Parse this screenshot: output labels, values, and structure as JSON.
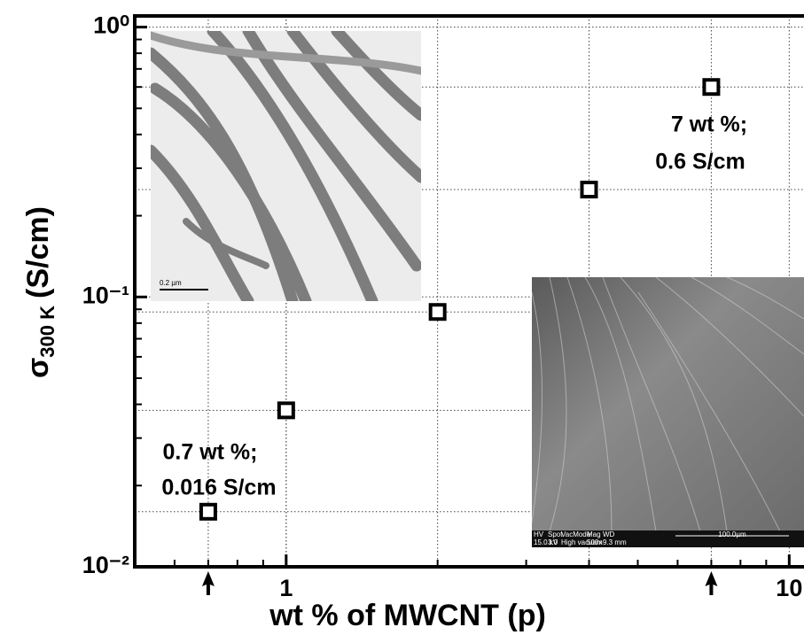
{
  "chart_data": {
    "type": "scatter",
    "x_label": "wt % of MWCNT (p)",
    "y_label": {
      "symbol": "σ",
      "subscript": "300 K",
      "unit": "(S/cm)"
    },
    "x": [
      0.7,
      1,
      2,
      4,
      7
    ],
    "values": [
      0.016,
      0.038,
      0.088,
      0.25,
      0.6
    ],
    "color": "#000000",
    "log_x": true,
    "log_y": true,
    "xlim": [
      0.5,
      10.7
    ],
    "ylim": [
      0.01,
      1.1
    ],
    "xticks": [
      1,
      10
    ],
    "yticks": [
      {
        "value": 0.01,
        "label": "10⁻²"
      },
      {
        "value": 0.1,
        "label": "10⁻¹"
      },
      {
        "value": 1,
        "label": "10⁰"
      }
    ],
    "xminorticks": [
      0.6,
      0.7,
      0.8,
      0.9,
      2,
      3,
      4,
      5,
      6,
      7,
      8,
      9
    ],
    "yminorticks": [
      0.02,
      0.03,
      0.04,
      0.05,
      0.06,
      0.07,
      0.08,
      0.09,
      0.2,
      0.3,
      0.4,
      0.5,
      0.6,
      0.7,
      0.8,
      0.9
    ],
    "grid": true,
    "drop_lines": true,
    "annotations": [
      {
        "lines": [
          "7 wt %;",
          "0.6 S/cm"
        ],
        "point": 4
      },
      {
        "lines": [
          "0.7 wt %;",
          "0.016 S/cm"
        ],
        "point": 0
      }
    ],
    "insets": {
      "tem_scale": "0.2 µm",
      "sem_header": [
        "HV",
        "Spot",
        "VacMode",
        "Mag",
        "WD"
      ],
      "sem_values": [
        "15.0 kV",
        "3.0",
        "High vacuum",
        "500x",
        "9.3 mm"
      ],
      "sem_scale": "100.0µm"
    }
  }
}
